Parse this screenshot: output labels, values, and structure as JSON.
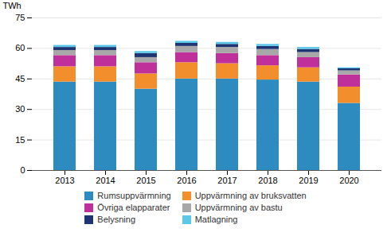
{
  "chart_data": {
    "type": "bar",
    "stacked": true,
    "categories": [
      "2013",
      "2014",
      "2015",
      "2016",
      "2017",
      "2018",
      "2019",
      "2020"
    ],
    "series": [
      {
        "name": "Rumsuppvärmning",
        "color": "#2e8bc0",
        "values": [
          43.5,
          43.5,
          40.0,
          45.0,
          45.0,
          44.5,
          43.5,
          33.0
        ]
      },
      {
        "name": "Uppvärmning av bruksvatten",
        "color": "#f28e2b",
        "values": [
          7.5,
          7.5,
          7.5,
          8.0,
          7.5,
          7.0,
          7.0,
          8.0
        ]
      },
      {
        "name": "Övriga elapparater",
        "color": "#c0309a",
        "values": [
          5.5,
          5.5,
          5.5,
          5.0,
          5.0,
          5.0,
          5.0,
          6.0
        ]
      },
      {
        "name": "Uppvärmning av bastu",
        "color": "#a8a8a8",
        "values": [
          2.5,
          2.5,
          2.5,
          3.0,
          3.0,
          3.0,
          2.5,
          2.0
        ]
      },
      {
        "name": "Belysning",
        "color": "#1f3472",
        "values": [
          1.5,
          1.5,
          2.0,
          1.5,
          1.5,
          1.5,
          1.5,
          1.0
        ]
      },
      {
        "name": "Matlagning",
        "color": "#5bc8e8",
        "values": [
          1.0,
          1.0,
          1.0,
          1.0,
          1.0,
          1.0,
          1.0,
          0.5
        ]
      }
    ],
    "ylabel": "TWh",
    "ylim": [
      0,
      75
    ],
    "yticks": [
      0,
      15,
      30,
      45,
      60,
      75
    ],
    "grid": true,
    "legend": "bottom"
  }
}
